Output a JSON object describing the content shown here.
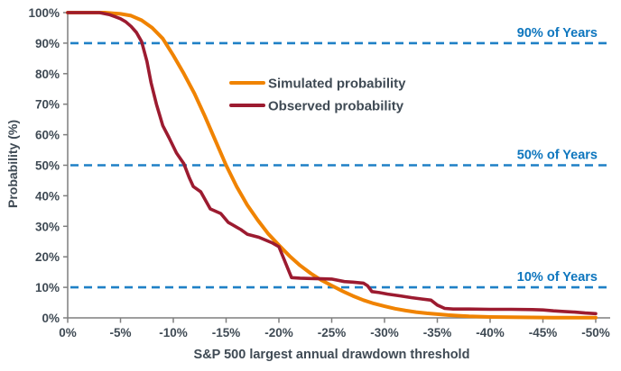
{
  "colors": {
    "simulated": "#F08300",
    "observed": "#9C1B30",
    "reference_line": "#1F80C6",
    "reference_label": "#0E76BE",
    "axis_line": "#7F7F7F",
    "text": "#3F4A54",
    "background": "#FFFFFF"
  },
  "chart_data": {
    "type": "line",
    "title": "",
    "xlabel": "S&P 500 largest annual drawdown threshold",
    "ylabel": "Probability (%)",
    "xlim": [
      0,
      -50
    ],
    "ylim": [
      0,
      100
    ],
    "grid": "off",
    "legend_position": "inside upper-middle",
    "x_ticks": [
      {
        "value": 0,
        "label": "0%"
      },
      {
        "value": -5,
        "label": "-5%"
      },
      {
        "value": -10,
        "label": "-10%"
      },
      {
        "value": -15,
        "label": "-15%"
      },
      {
        "value": -20,
        "label": "-20%"
      },
      {
        "value": -25,
        "label": "-25%"
      },
      {
        "value": -30,
        "label": "-30%"
      },
      {
        "value": -35,
        "label": "-35%"
      },
      {
        "value": -40,
        "label": "-40%"
      },
      {
        "value": -45,
        "label": "-45%"
      },
      {
        "value": -50,
        "label": "-50%"
      }
    ],
    "y_ticks": [
      {
        "value": 0,
        "label": "0%"
      },
      {
        "value": 10,
        "label": "10%"
      },
      {
        "value": 20,
        "label": "20%"
      },
      {
        "value": 30,
        "label": "30%"
      },
      {
        "value": 40,
        "label": "40%"
      },
      {
        "value": 50,
        "label": "50%"
      },
      {
        "value": 60,
        "label": "60%"
      },
      {
        "value": 70,
        "label": "70%"
      },
      {
        "value": 80,
        "label": "80%"
      },
      {
        "value": 90,
        "label": "90%"
      },
      {
        "value": 100,
        "label": "100%"
      }
    ],
    "reference_lines": [
      {
        "y": 90,
        "label": "90% of Years"
      },
      {
        "y": 50,
        "label": "50% of Years"
      },
      {
        "y": 10,
        "label": "10% of Years"
      }
    ],
    "series": [
      {
        "name": "Simulated probability",
        "color_key": "simulated",
        "points": [
          [
            0,
            100
          ],
          [
            -2,
            100
          ],
          [
            -3.5,
            100
          ],
          [
            -5,
            99.6
          ],
          [
            -6,
            99
          ],
          [
            -7,
            97.5
          ],
          [
            -8,
            95
          ],
          [
            -9,
            91.5
          ],
          [
            -10,
            86
          ],
          [
            -11,
            80
          ],
          [
            -12,
            73.5
          ],
          [
            -13,
            66
          ],
          [
            -14,
            58
          ],
          [
            -15,
            50
          ],
          [
            -16,
            43
          ],
          [
            -17,
            37
          ],
          [
            -18,
            32
          ],
          [
            -19,
            27.5
          ],
          [
            -20,
            23.8
          ],
          [
            -21,
            20.3
          ],
          [
            -22,
            17.2
          ],
          [
            -23,
            14.6
          ],
          [
            -24,
            12.4
          ],
          [
            -25,
            10.6
          ],
          [
            -26,
            8.8
          ],
          [
            -27,
            7.2
          ],
          [
            -28,
            5.8
          ],
          [
            -29,
            4.7
          ],
          [
            -30,
            3.8
          ],
          [
            -31,
            3
          ],
          [
            -32,
            2.4
          ],
          [
            -33,
            1.9
          ],
          [
            -34,
            1.5
          ],
          [
            -35,
            1.2
          ],
          [
            -36,
            0.9
          ],
          [
            -37,
            0.7
          ],
          [
            -38,
            0.5
          ],
          [
            -39,
            0.4
          ],
          [
            -40,
            0.3
          ],
          [
            -42,
            0.2
          ],
          [
            -44,
            0.15
          ],
          [
            -46,
            0.1
          ],
          [
            -48,
            0.1
          ],
          [
            -50,
            0.1
          ]
        ]
      },
      {
        "name": "Observed probability",
        "color_key": "observed",
        "points": [
          [
            0,
            100
          ],
          [
            -3,
            100
          ],
          [
            -4,
            99.3
          ],
          [
            -5,
            98
          ],
          [
            -5.5,
            97
          ],
          [
            -6,
            95.5
          ],
          [
            -6.5,
            93.5
          ],
          [
            -7,
            90.5
          ],
          [
            -7.5,
            84
          ],
          [
            -7.9,
            77
          ],
          [
            -8.4,
            70
          ],
          [
            -9,
            63
          ],
          [
            -9.6,
            59
          ],
          [
            -10.3,
            54
          ],
          [
            -11,
            50.5
          ],
          [
            -11.5,
            46
          ],
          [
            -11.9,
            43
          ],
          [
            -12.6,
            41.3
          ],
          [
            -13.5,
            35.7
          ],
          [
            -14.5,
            34.2
          ],
          [
            -15.2,
            31.3
          ],
          [
            -16.4,
            28.9
          ],
          [
            -17,
            27.4
          ],
          [
            -18.1,
            26.4
          ],
          [
            -19.4,
            24.5
          ],
          [
            -20,
            23.3
          ],
          [
            -21.2,
            13.2
          ],
          [
            -22,
            13
          ],
          [
            -23,
            12.9
          ],
          [
            -24,
            12.8
          ],
          [
            -25,
            12.7
          ],
          [
            -26.2,
            11.9
          ],
          [
            -27,
            11.7
          ],
          [
            -28,
            11.4
          ],
          [
            -28.4,
            10.5
          ],
          [
            -28.8,
            8.6
          ],
          [
            -29.5,
            8.3
          ],
          [
            -30.3,
            7.8
          ],
          [
            -31.5,
            7.2
          ],
          [
            -32.6,
            6.6
          ],
          [
            -33.5,
            6.2
          ],
          [
            -34.4,
            5.8
          ],
          [
            -35,
            4.2
          ],
          [
            -35.7,
            3.1
          ],
          [
            -36.5,
            2.9
          ],
          [
            -38,
            2.9
          ],
          [
            -40,
            2.8
          ],
          [
            -42,
            2.8
          ],
          [
            -44,
            2.7
          ],
          [
            -45,
            2.6
          ],
          [
            -46,
            2.3
          ],
          [
            -47,
            2.1
          ],
          [
            -48,
            1.9
          ],
          [
            -49,
            1.6
          ],
          [
            -50,
            1.4
          ]
        ]
      }
    ],
    "legend": [
      {
        "label": "Simulated probability",
        "color_key": "simulated"
      },
      {
        "label": "Observed probability",
        "color_key": "observed"
      }
    ]
  }
}
